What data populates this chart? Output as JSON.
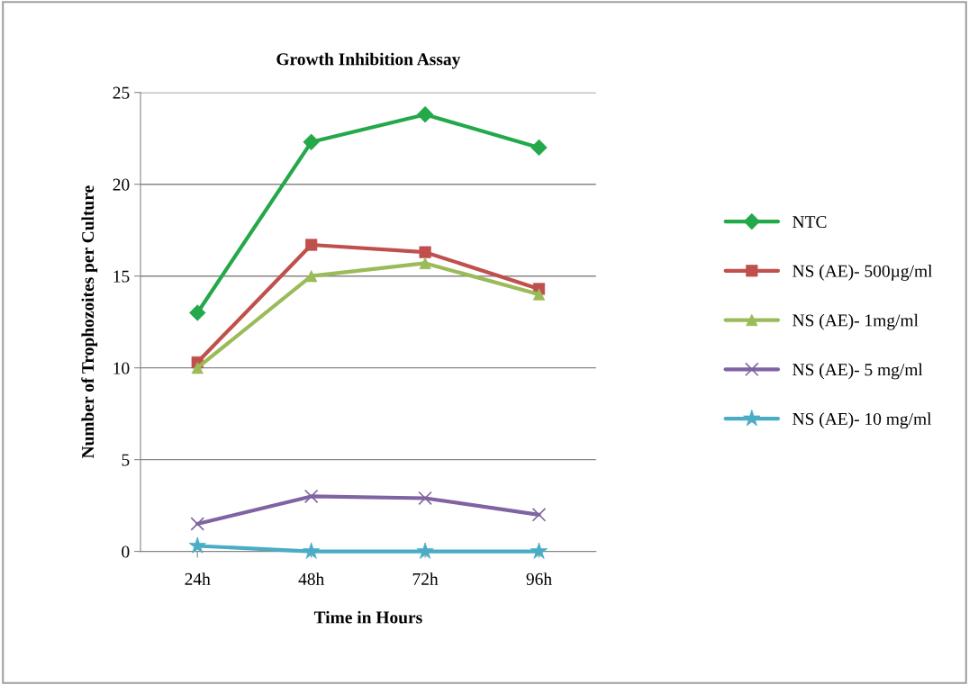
{
  "chart_data": {
    "type": "line",
    "title": "Growth Inhibition Assay",
    "xlabel": "Time in Hours",
    "ylabel": "Number of Trophozoites per Culture",
    "categories": [
      "24h",
      "48h",
      "72h",
      "96h"
    ],
    "series": [
      {
        "name": "NTC",
        "color": "#23a84a",
        "marker": "diamond",
        "values": [
          13.0,
          22.3,
          23.8,
          22.0
        ]
      },
      {
        "name": "NS (AE)- 500µg/ml",
        "color": "#c0504d",
        "marker": "square",
        "values": [
          10.3,
          16.7,
          16.3,
          14.3
        ]
      },
      {
        "name": "NS (AE)- 1mg/ml",
        "color": "#9bbb59",
        "marker": "triangle",
        "values": [
          10.0,
          15.0,
          15.7,
          14.0
        ]
      },
      {
        "name": "NS (AE)- 5 mg/ml",
        "color": "#8064a2",
        "marker": "cross",
        "values": [
          1.5,
          3.0,
          2.9,
          2.0
        ]
      },
      {
        "name": "NS (AE)- 10 mg/ml",
        "color": "#4bacc6",
        "marker": "star",
        "values": [
          0.3,
          0.0,
          0.0,
          0.0
        ]
      }
    ],
    "ylim": [
      0,
      25
    ],
    "yticks": [
      0,
      5,
      10,
      15,
      20,
      25
    ],
    "grid": "y",
    "legend": "right",
    "line_style": "solid"
  }
}
